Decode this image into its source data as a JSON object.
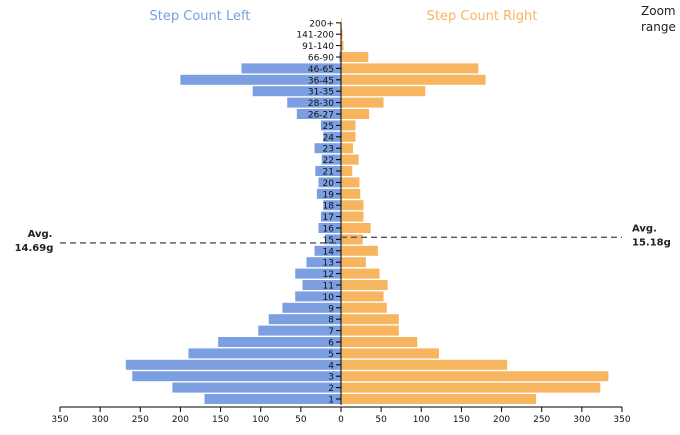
{
  "zoom_label": [
    "Zoom",
    "range"
  ],
  "chart_data": {
    "type": "bar",
    "orientation": "horizontal-diverging",
    "categories": [
      "1",
      "2",
      "3",
      "4",
      "5",
      "6",
      "7",
      "8",
      "9",
      "10",
      "11",
      "12",
      "13",
      "14",
      "15",
      "16",
      "17",
      "18",
      "19",
      "20",
      "21",
      "22",
      "23",
      "24",
      "25",
      "26-27",
      "28-30",
      "31-35",
      "36-45",
      "46-65",
      "66-90",
      "91-140",
      "141-200",
      "200+"
    ],
    "series": [
      {
        "name": "Step Count Left",
        "color": "#7b9fe0",
        "values": [
          170,
          210,
          260,
          268,
          190,
          153,
          103,
          90,
          73,
          57,
          48,
          57,
          43,
          33,
          20,
          28,
          25,
          22,
          30,
          28,
          32,
          24,
          33,
          22,
          25,
          55,
          67,
          110,
          200,
          124,
          2,
          0,
          0,
          0
        ]
      },
      {
        "name": "Step Count Right",
        "color": "#f7b55f",
        "values": [
          243,
          323,
          333,
          207,
          122,
          95,
          72,
          72,
          57,
          53,
          58,
          48,
          31,
          46,
          27,
          37,
          28,
          28,
          24,
          23,
          14,
          22,
          15,
          18,
          18,
          35,
          53,
          105,
          180,
          171,
          34,
          3,
          2,
          1
        ]
      }
    ],
    "x_ticks": [
      350,
      300,
      250,
      200,
      150,
      100,
      50,
      0,
      50,
      100,
      150,
      200,
      250,
      300,
      350
    ],
    "xlim": [
      -350,
      350
    ],
    "annotations": [
      {
        "side": "left",
        "label": "Avg.",
        "value": "14.69g",
        "category_position": 14.69
      },
      {
        "side": "right",
        "label": "Avg.",
        "value": "15.18g",
        "category_position": 15.18
      }
    ],
    "grid": false
  }
}
